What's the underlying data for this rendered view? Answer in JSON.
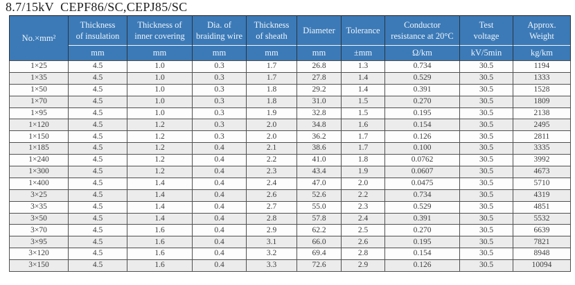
{
  "title": "8.7/15kV  CEPF86/SC,CEPJ85/SC",
  "table": {
    "header_bg_color": "#3c7ab7",
    "stripe_color": "#ececec",
    "columns": [
      {
        "label": "No.×mm²",
        "unit": ""
      },
      {
        "label": "Thickness\nof insulation",
        "unit": "mm"
      },
      {
        "label": "Thickness of\ninner covering",
        "unit": "mm"
      },
      {
        "label": "Dia. of\nbraiding wire",
        "unit": "mm"
      },
      {
        "label": "Thickness\nof sheath",
        "unit": "mm"
      },
      {
        "label": "Diameter",
        "unit": "mm"
      },
      {
        "label": "Tolerance",
        "unit": "±mm"
      },
      {
        "label": "Conductor\nresistance at 20°C",
        "unit": "Ω/km"
      },
      {
        "label": "Test\nvoltage",
        "unit": "kV/5min"
      },
      {
        "label": "Approx.\nWeight",
        "unit": "kg/km"
      }
    ],
    "rows": [
      [
        "1×25",
        "4.5",
        "1.0",
        "0.3",
        "1.7",
        "26.8",
        "1.3",
        "0.734",
        "30.5",
        "1194"
      ],
      [
        "1×35",
        "4.5",
        "1.0",
        "0.3",
        "1.7",
        "27.8",
        "1.4",
        "0.529",
        "30.5",
        "1333"
      ],
      [
        "1×50",
        "4.5",
        "1.0",
        "0.3",
        "1.8",
        "29.2",
        "1.4",
        "0.391",
        "30.5",
        "1528"
      ],
      [
        "1×70",
        "4.5",
        "1.0",
        "0.3",
        "1.8",
        "31.0",
        "1.5",
        "0.270",
        "30.5",
        "1809"
      ],
      [
        "1×95",
        "4.5",
        "1.0",
        "0.3",
        "1.9",
        "32.8",
        "1.5",
        "0.195",
        "30.5",
        "2138"
      ],
      [
        "1×120",
        "4.5",
        "1.2",
        "0.3",
        "2.0",
        "34.8",
        "1.6",
        "0.154",
        "30.5",
        "2495"
      ],
      [
        "1×150",
        "4.5",
        "1.2",
        "0.3",
        "2.0",
        "36.2",
        "1.7",
        "0.126",
        "30.5",
        "2811"
      ],
      [
        "1×185",
        "4.5",
        "1.2",
        "0.4",
        "2.1",
        "38.6",
        "1.7",
        "0.100",
        "30.5",
        "3335"
      ],
      [
        "1×240",
        "4.5",
        "1.2",
        "0.4",
        "2.2",
        "41.0",
        "1.8",
        "0.0762",
        "30.5",
        "3992"
      ],
      [
        "1×300",
        "4.5",
        "1.2",
        "0.4",
        "2.3",
        "43.4",
        "1.9",
        "0.0607",
        "30.5",
        "4673"
      ],
      [
        "1×400",
        "4.5",
        "1.4",
        "0.4",
        "2.4",
        "47.0",
        "2.0",
        "0.0475",
        "30.5",
        "5710"
      ],
      [
        "3×25",
        "4.5",
        "1.4",
        "0.4",
        "2.6",
        "52.6",
        "2.2",
        "0.734",
        "30.5",
        "4319"
      ],
      [
        "3×35",
        "4.5",
        "1.4",
        "0.4",
        "2.7",
        "55.0",
        "2.3",
        "0.529",
        "30.5",
        "4851"
      ],
      [
        "3×50",
        "4.5",
        "1.4",
        "0.4",
        "2.8",
        "57.8",
        "2.4",
        "0.391",
        "30.5",
        "5532"
      ],
      [
        "3×70",
        "4.5",
        "1.6",
        "0.4",
        "2.9",
        "62.2",
        "2.5",
        "0.270",
        "30.5",
        "6639"
      ],
      [
        "3×95",
        "4.5",
        "1.6",
        "0.4",
        "3.1",
        "66.0",
        "2.6",
        "0.195",
        "30.5",
        "7821"
      ],
      [
        "3×120",
        "4.5",
        "1.6",
        "0.4",
        "3.2",
        "69.4",
        "2.8",
        "0.154",
        "30.5",
        "8948"
      ],
      [
        "3×150",
        "4.5",
        "1.6",
        "0.4",
        "3.3",
        "72.6",
        "2.9",
        "0.126",
        "30.5",
        "10094"
      ]
    ]
  }
}
